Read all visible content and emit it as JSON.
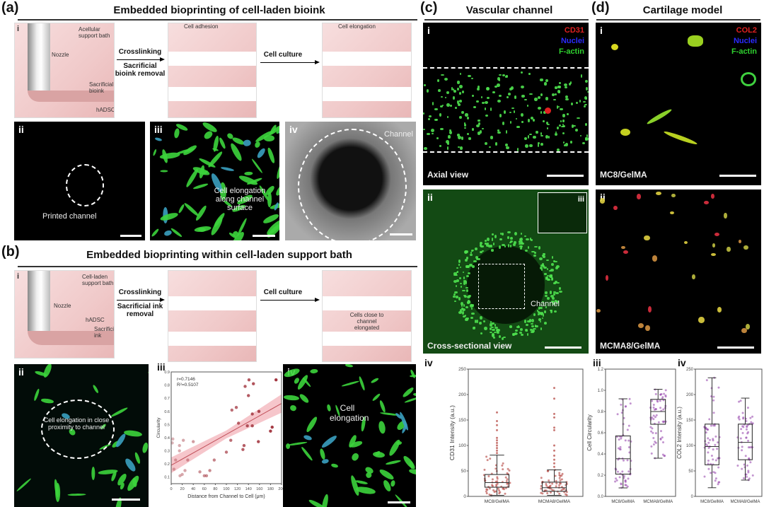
{
  "panel_a": {
    "label": "(a)",
    "title": "Embedded bioprinting of cell-laden bioink",
    "i": {
      "roman": "i",
      "labels": [
        "Acellular support bath",
        "Nozzle",
        "Sacrificial bioink",
        "hADSC"
      ],
      "arrow1_top": "Crosslinking",
      "arrow1_bottom": "Sacrificial bioink removal",
      "stage2_label": "Cell adhesion",
      "arrow2_top": "Cell culture",
      "stage3_label": "Cell elongation"
    },
    "ii": {
      "roman": "ii",
      "annotation": "Printed channel"
    },
    "iii": {
      "roman": "iii",
      "annotation": "Cell elongation along channel surface"
    },
    "iv": {
      "roman": "iv",
      "annotation": "Channel"
    }
  },
  "panel_b": {
    "label": "(b)",
    "title": "Embedded bioprinting within cell-laden support bath",
    "i": {
      "roman": "i",
      "labels": [
        "Cell-laden support bath",
        "Nozzle",
        "hADSC",
        "Sacrificial ink"
      ],
      "arrow1_top": "Crosslinking",
      "arrow1_bottom": "Sacrificial ink removal",
      "arrow2_top": "Cell culture",
      "stage3_label": "Cells close to channel elongated"
    },
    "ii": {
      "roman": "ii",
      "annotation": "Cell elongation in close proximity to channel"
    },
    "iii": {
      "roman": "iii"
    },
    "iv": {
      "roman": "iv",
      "annotation": "Cell elongation"
    }
  },
  "panel_c": {
    "label": "(c)",
    "title": "Vascular channel",
    "i": {
      "roman": "i",
      "legend": [
        "CD31",
        "Nuclei",
        "F-actin"
      ],
      "caption": "Axial view"
    },
    "ii": {
      "roman": "ii",
      "inset": "iii",
      "annotation": "Channel",
      "caption": "Cross-sectional view"
    },
    "iv": {
      "roman": "iv"
    }
  },
  "panel_d": {
    "label": "(d)",
    "title": "Cartilage model",
    "i": {
      "roman": "i",
      "legend": [
        "COL2",
        "Nuclei",
        "F-actin"
      ],
      "caption": "MC8/GelMA"
    },
    "ii": {
      "roman": "ii",
      "caption": "MCMA8/GelMA"
    },
    "iii": {
      "roman": "iii"
    },
    "iv": {
      "roman": "iv"
    }
  },
  "colors": {
    "red": "#e02020",
    "blue": "#2b2bff",
    "green": "#2fd12f",
    "scatter": "#a0303a",
    "band": "#f4b8be",
    "box_c": "#b2403a",
    "box_d": "#9b4fb0"
  },
  "chart_data": [
    {
      "id": "b-iii",
      "type": "scatter",
      "xlabel": "Distance from Channel to Cell (μm)",
      "ylabel": "Circularity",
      "xlim": [
        0,
        200
      ],
      "ylim": [
        0.05,
        0.9
      ],
      "xticks": [
        0,
        20,
        40,
        60,
        80,
        100,
        120,
        140,
        160,
        180,
        200
      ],
      "yticks": [
        0.1,
        0.2,
        0.3,
        0.4,
        0.5,
        0.6,
        0.7,
        0.8,
        0.9
      ],
      "annotations": [
        "r=0.7146",
        "R²=0.5107"
      ],
      "fit": {
        "x": [
          0,
          200
        ],
        "y": [
          0.19,
          0.66
        ]
      },
      "band_halfwidth": [
        0.06,
        0.03,
        0.07
      ],
      "points": [
        [
          2,
          0.36
        ],
        [
          3,
          0.39
        ],
        [
          5,
          0.16
        ],
        [
          8,
          0.23
        ],
        [
          15,
          0.34
        ],
        [
          15,
          0.3
        ],
        [
          16,
          0.11
        ],
        [
          20,
          0.12
        ],
        [
          22,
          0.38
        ],
        [
          25,
          0.15
        ],
        [
          30,
          0.23
        ],
        [
          40,
          0.37
        ],
        [
          52,
          0.14
        ],
        [
          60,
          0.11
        ],
        [
          64,
          0.11
        ],
        [
          70,
          0.15
        ],
        [
          78,
          0.23
        ],
        [
          100,
          0.29
        ],
        [
          108,
          0.38
        ],
        [
          110,
          0.61
        ],
        [
          118,
          0.63
        ],
        [
          122,
          0.51
        ],
        [
          130,
          0.31
        ],
        [
          132,
          0.34
        ],
        [
          134,
          0.79
        ],
        [
          138,
          0.49
        ],
        [
          140,
          0.72
        ],
        [
          141,
          0.84
        ],
        [
          147,
          0.58
        ],
        [
          147,
          0.49
        ],
        [
          149,
          0.81
        ],
        [
          158,
          0.37
        ],
        [
          159,
          0.6
        ],
        [
          180,
          0.45
        ],
        [
          183,
          0.48
        ],
        [
          190,
          0.84
        ]
      ]
    },
    {
      "id": "c-iv",
      "type": "box",
      "ylabel": "CD31 Intensity (a.u.)",
      "ylim": [
        0,
        250
      ],
      "yticks": [
        0,
        50,
        100,
        150,
        200,
        250
      ],
      "categories": [
        "MC8/GelMA",
        "MCMA8/GelMA"
      ],
      "boxes": [
        {
          "min": 2,
          "q1": 18,
          "median": 27,
          "q3": 43,
          "max": 81,
          "outliers": [
            85,
            90,
            95,
            100,
            105,
            110,
            115,
            130,
            140,
            148,
            165
          ]
        },
        {
          "min": 2,
          "q1": 10,
          "median": 17,
          "q3": 28,
          "max": 52,
          "outliers": [
            58,
            65,
            72,
            80,
            90,
            100,
            130,
            135,
            155,
            162,
            192,
            213
          ]
        }
      ]
    },
    {
      "id": "d-iii",
      "type": "box",
      "ylabel": "Cell Circularity",
      "ylim": [
        0,
        1.2
      ],
      "yticks": [
        0.0,
        0.2,
        0.4,
        0.6,
        0.8,
        1.0,
        1.2
      ],
      "categories": [
        "MC8/GelMA",
        "MCMA8/GelMA"
      ],
      "boxes": [
        {
          "min": 0.08,
          "q1": 0.21,
          "median": 0.355,
          "q3": 0.57,
          "max": 0.92,
          "outliers": []
        },
        {
          "min": 0.36,
          "q1": 0.68,
          "median": 0.8,
          "q3": 0.915,
          "max": 1.01,
          "outliers": []
        }
      ]
    },
    {
      "id": "d-iv",
      "type": "box",
      "ylabel": "COL2 Intensity (a.u.)",
      "ylim": [
        0,
        250
      ],
      "yticks": [
        0,
        50,
        100,
        150,
        200,
        250
      ],
      "categories": [
        "MC8/GelMA",
        "MCMA8/GelMA"
      ],
      "boxes": [
        {
          "min": 17,
          "q1": 62,
          "median": 98,
          "q3": 142,
          "max": 233,
          "outliers": []
        },
        {
          "min": 32,
          "q1": 72,
          "median": 106,
          "q3": 142,
          "max": 193,
          "outliers": []
        }
      ]
    }
  ]
}
